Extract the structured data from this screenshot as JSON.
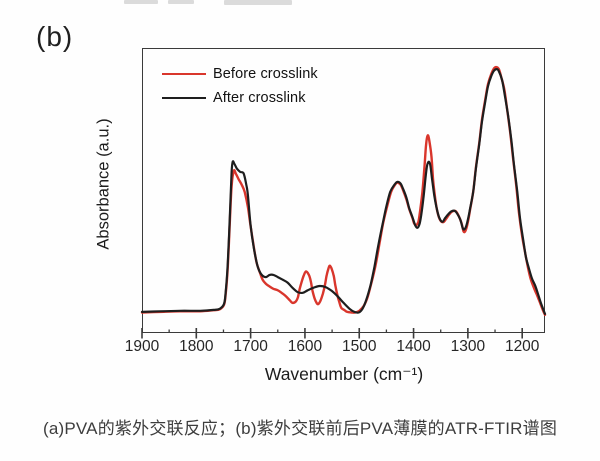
{
  "panel_label": "(b)",
  "caption": "(a)PVA的紫外交联反应；(b)紫外交联前后PVA薄膜的ATR-FTIR谱图",
  "colors": {
    "axis": "#3b3b3b",
    "tick_text": "#262626",
    "caption_text": "#3d3d3d"
  },
  "chart_data": {
    "type": "line",
    "title": "",
    "xlabel": "Wavenumber (cm⁻¹)",
    "ylabel": "Absorbance (a.u.)",
    "x_axis": {
      "max": 1900,
      "min": 1158,
      "reversed": true,
      "ticks": [
        1900,
        1800,
        1700,
        1600,
        1500,
        1400,
        1300,
        1200
      ],
      "minor_ticks": [
        1850,
        1750,
        1650,
        1550,
        1450,
        1350,
        1250
      ]
    },
    "y_axis": {
      "units": "a.u.",
      "range": [
        0,
        1
      ],
      "ticks_shown": false
    },
    "grid": false,
    "legend_position": "top-left",
    "series": [
      {
        "name": "Before crosslink",
        "color": "#d9362c",
        "points": [
          [
            1900,
            0.072
          ],
          [
            1867,
            0.074
          ],
          [
            1830,
            0.076
          ],
          [
            1793,
            0.076
          ],
          [
            1768,
            0.08
          ],
          [
            1757,
            0.083
          ],
          [
            1749,
            0.099
          ],
          [
            1746,
            0.134
          ],
          [
            1742,
            0.233
          ],
          [
            1738,
            0.403
          ],
          [
            1735,
            0.515
          ],
          [
            1731,
            0.569
          ],
          [
            1727,
            0.558
          ],
          [
            1722,
            0.539
          ],
          [
            1716,
            0.519
          ],
          [
            1711,
            0.495
          ],
          [
            1705,
            0.442
          ],
          [
            1700,
            0.375
          ],
          [
            1694,
            0.3
          ],
          [
            1689,
            0.247
          ],
          [
            1683,
            0.212
          ],
          [
            1678,
            0.187
          ],
          [
            1672,
            0.173
          ],
          [
            1665,
            0.163
          ],
          [
            1658,
            0.155
          ],
          [
            1650,
            0.15
          ],
          [
            1643,
            0.141
          ],
          [
            1635,
            0.129
          ],
          [
            1628,
            0.115
          ],
          [
            1623,
            0.106
          ],
          [
            1617,
            0.11
          ],
          [
            1613,
            0.125
          ],
          [
            1610,
            0.152
          ],
          [
            1606,
            0.18
          ],
          [
            1602,
            0.203
          ],
          [
            1598,
            0.216
          ],
          [
            1593,
            0.205
          ],
          [
            1589,
            0.18
          ],
          [
            1586,
            0.148
          ],
          [
            1582,
            0.12
          ],
          [
            1578,
            0.104
          ],
          [
            1575,
            0.102
          ],
          [
            1571,
            0.115
          ],
          [
            1567,
            0.138
          ],
          [
            1563,
            0.17
          ],
          [
            1560,
            0.203
          ],
          [
            1556,
            0.23
          ],
          [
            1554,
            0.236
          ],
          [
            1551,
            0.226
          ],
          [
            1547,
            0.201
          ],
          [
            1544,
            0.166
          ],
          [
            1540,
            0.131
          ],
          [
            1536,
            0.104
          ],
          [
            1533,
            0.088
          ],
          [
            1527,
            0.08
          ],
          [
            1522,
            0.074
          ],
          [
            1514,
            0.072
          ],
          [
            1507,
            0.072
          ],
          [
            1500,
            0.078
          ],
          [
            1492,
            0.094
          ],
          [
            1485,
            0.124
          ],
          [
            1478,
            0.173
          ],
          [
            1470,
            0.237
          ],
          [
            1463,
            0.311
          ],
          [
            1456,
            0.385
          ],
          [
            1448,
            0.449
          ],
          [
            1441,
            0.497
          ],
          [
            1433,
            0.523
          ],
          [
            1430,
            0.528
          ],
          [
            1424,
            0.521
          ],
          [
            1419,
            0.5
          ],
          [
            1413,
            0.468
          ],
          [
            1408,
            0.435
          ],
          [
            1402,
            0.403
          ],
          [
            1399,
            0.385
          ],
          [
            1395,
            0.379
          ],
          [
            1391,
            0.392
          ],
          [
            1388,
            0.428
          ],
          [
            1384,
            0.491
          ],
          [
            1380,
            0.58
          ],
          [
            1377,
            0.661
          ],
          [
            1374,
            0.693
          ],
          [
            1371,
            0.675
          ],
          [
            1367,
            0.618
          ],
          [
            1364,
            0.537
          ],
          [
            1360,
            0.47
          ],
          [
            1356,
            0.424
          ],
          [
            1351,
            0.396
          ],
          [
            1345,
            0.389
          ],
          [
            1340,
            0.401
          ],
          [
            1334,
            0.417
          ],
          [
            1329,
            0.426
          ],
          [
            1323,
            0.428
          ],
          [
            1318,
            0.415
          ],
          [
            1312,
            0.387
          ],
          [
            1308,
            0.357
          ],
          [
            1305,
            0.357
          ],
          [
            1301,
            0.38
          ],
          [
            1296,
            0.431
          ],
          [
            1290,
            0.498
          ],
          [
            1285,
            0.583
          ],
          [
            1279,
            0.668
          ],
          [
            1274,
            0.749
          ],
          [
            1268,
            0.82
          ],
          [
            1263,
            0.873
          ],
          [
            1257,
            0.908
          ],
          [
            1252,
            0.928
          ],
          [
            1248,
            0.933
          ],
          [
            1243,
            0.926
          ],
          [
            1239,
            0.901
          ],
          [
            1233,
            0.855
          ],
          [
            1228,
            0.788
          ],
          [
            1222,
            0.703
          ],
          [
            1217,
            0.615
          ],
          [
            1211,
            0.519
          ],
          [
            1206,
            0.424
          ],
          [
            1200,
            0.339
          ],
          [
            1194,
            0.276
          ],
          [
            1189,
            0.226
          ],
          [
            1184,
            0.187
          ],
          [
            1178,
            0.157
          ],
          [
            1173,
            0.134
          ],
          [
            1168,
            0.11
          ],
          [
            1162,
            0.081
          ],
          [
            1158,
            0.064
          ]
        ]
      },
      {
        "name": "After crosslink",
        "color": "#1e1e1e",
        "points": [
          [
            1900,
            0.074
          ],
          [
            1867,
            0.076
          ],
          [
            1830,
            0.078
          ],
          [
            1793,
            0.078
          ],
          [
            1768,
            0.081
          ],
          [
            1757,
            0.085
          ],
          [
            1749,
            0.102
          ],
          [
            1746,
            0.141
          ],
          [
            1742,
            0.247
          ],
          [
            1738,
            0.424
          ],
          [
            1735,
            0.565
          ],
          [
            1733,
            0.601
          ],
          [
            1730,
            0.594
          ],
          [
            1725,
            0.576
          ],
          [
            1719,
            0.565
          ],
          [
            1713,
            0.56
          ],
          [
            1708,
            0.52
          ],
          [
            1705,
            0.484
          ],
          [
            1700,
            0.378
          ],
          [
            1694,
            0.297
          ],
          [
            1687,
            0.233
          ],
          [
            1680,
            0.205
          ],
          [
            1672,
            0.196
          ],
          [
            1665,
            0.204
          ],
          [
            1658,
            0.204
          ],
          [
            1650,
            0.196
          ],
          [
            1641,
            0.187
          ],
          [
            1632,
            0.177
          ],
          [
            1623,
            0.159
          ],
          [
            1613,
            0.143
          ],
          [
            1604,
            0.141
          ],
          [
            1595,
            0.15
          ],
          [
            1584,
            0.159
          ],
          [
            1573,
            0.165
          ],
          [
            1562,
            0.161
          ],
          [
            1551,
            0.148
          ],
          [
            1540,
            0.129
          ],
          [
            1529,
            0.106
          ],
          [
            1518,
            0.085
          ],
          [
            1509,
            0.074
          ],
          [
            1501,
            0.072
          ],
          [
            1494,
            0.085
          ],
          [
            1487,
            0.117
          ],
          [
            1479,
            0.17
          ],
          [
            1472,
            0.233
          ],
          [
            1465,
            0.307
          ],
          [
            1457,
            0.382
          ],
          [
            1450,
            0.445
          ],
          [
            1443,
            0.495
          ],
          [
            1435,
            0.521
          ],
          [
            1430,
            0.53
          ],
          [
            1424,
            0.525
          ],
          [
            1419,
            0.505
          ],
          [
            1413,
            0.474
          ],
          [
            1408,
            0.438
          ],
          [
            1402,
            0.406
          ],
          [
            1397,
            0.378
          ],
          [
            1393,
            0.369
          ],
          [
            1389,
            0.382
          ],
          [
            1386,
            0.413
          ],
          [
            1382,
            0.47
          ],
          [
            1378,
            0.544
          ],
          [
            1375,
            0.588
          ],
          [
            1372,
            0.601
          ],
          [
            1369,
            0.587
          ],
          [
            1366,
            0.541
          ],
          [
            1362,
            0.484
          ],
          [
            1358,
            0.442
          ],
          [
            1353,
            0.406
          ],
          [
            1347,
            0.39
          ],
          [
            1342,
            0.403
          ],
          [
            1336,
            0.417
          ],
          [
            1331,
            0.426
          ],
          [
            1325,
            0.429
          ],
          [
            1320,
            0.42
          ],
          [
            1314,
            0.398
          ],
          [
            1309,
            0.366
          ],
          [
            1305,
            0.367
          ],
          [
            1301,
            0.389
          ],
          [
            1296,
            0.435
          ],
          [
            1290,
            0.498
          ],
          [
            1285,
            0.58
          ],
          [
            1279,
            0.664
          ],
          [
            1274,
            0.742
          ],
          [
            1268,
            0.813
          ],
          [
            1263,
            0.866
          ],
          [
            1257,
            0.901
          ],
          [
            1252,
            0.92
          ],
          [
            1247,
            0.926
          ],
          [
            1243,
            0.919
          ],
          [
            1237,
            0.887
          ],
          [
            1232,
            0.834
          ],
          [
            1226,
            0.763
          ],
          [
            1220,
            0.678
          ],
          [
            1215,
            0.59
          ],
          [
            1209,
            0.495
          ],
          [
            1204,
            0.403
          ],
          [
            1198,
            0.325
          ],
          [
            1193,
            0.265
          ],
          [
            1187,
            0.223
          ],
          [
            1182,
            0.191
          ],
          [
            1176,
            0.166
          ],
          [
            1171,
            0.138
          ],
          [
            1165,
            0.102
          ],
          [
            1158,
            0.067
          ]
        ]
      }
    ]
  }
}
